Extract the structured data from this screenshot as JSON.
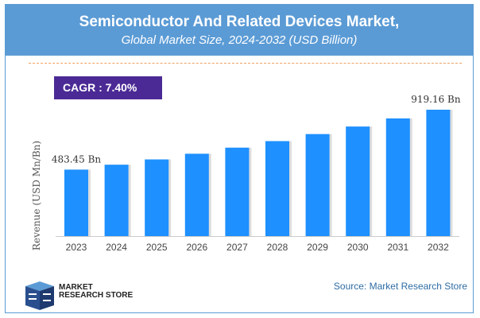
{
  "chart_data": {
    "type": "bar",
    "title": "Semiconductor And Related Devices Market,",
    "subtitle": "Global Market Size, 2024-2032 (USD Billion)",
    "ylabel": "Revenue (USD Mn/Bn)",
    "xlabel": "",
    "categories": [
      "2023",
      "2024",
      "2025",
      "2026",
      "2027",
      "2028",
      "2029",
      "2030",
      "2031",
      "2032"
    ],
    "values": [
      483.45,
      519.2,
      557.7,
      598.9,
      643.2,
      690.8,
      741.9,
      796.8,
      855.8,
      919.16
    ],
    "data_labels": {
      "first": "483.45 Bn",
      "last": "919.16 Bn"
    },
    "ylim": [
      0,
      1000
    ],
    "grid": false,
    "bar_color": "#1e90ff"
  },
  "cagr": "CAGR :  7.40%",
  "logo": {
    "line1": "MARKET",
    "line2": "RESEARCH STORE"
  },
  "source": "Source: Market Research Store",
  "colors": {
    "header": "#5b9bd5",
    "cagr_bg": "#4b2a95",
    "source": "#2e6da4"
  }
}
